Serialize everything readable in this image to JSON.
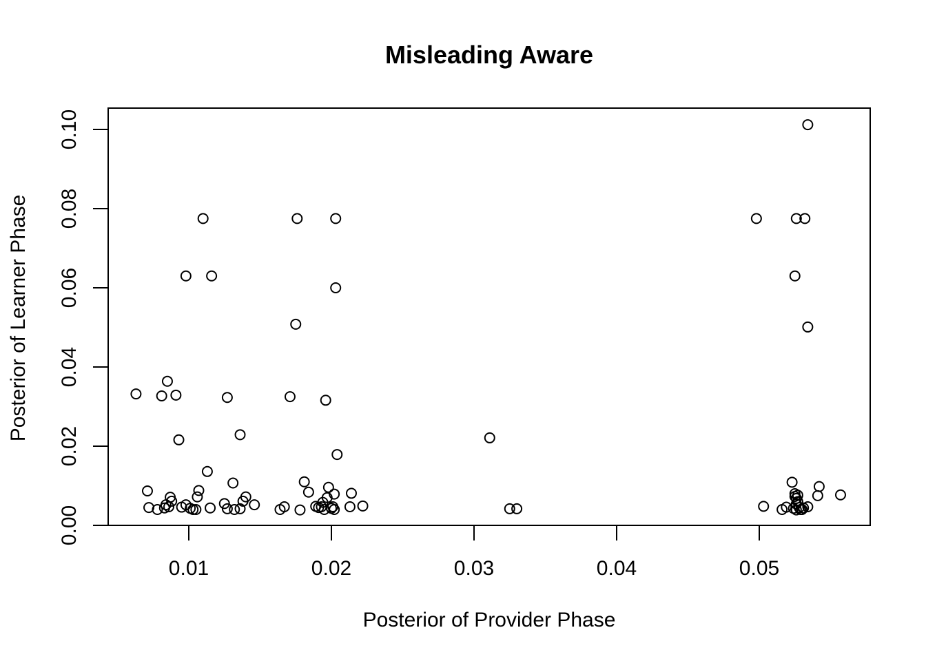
{
  "chart_data": {
    "type": "scatter",
    "title": "Misleading Aware",
    "xlabel": "Posterior of Provider Phase",
    "ylabel": "Posterior of Learner Phase",
    "xlim": [
      0.0045,
      0.058
    ],
    "ylim": [
      0.0,
      0.105
    ],
    "x_ticks": [
      0.01,
      0.02,
      0.03,
      0.04,
      0.05
    ],
    "x_tick_labels": [
      "0.01",
      "0.02",
      "0.03",
      "0.04",
      "0.05"
    ],
    "y_ticks": [
      0.0,
      0.02,
      0.04,
      0.06,
      0.08,
      0.1
    ],
    "y_tick_labels": [
      "0.00",
      "0.02",
      "0.04",
      "0.06",
      "0.08",
      "0.10"
    ],
    "grid": false,
    "legend": "none",
    "marker": "open-circle",
    "points": [
      [
        0.0063,
        0.0332
      ],
      [
        0.0081,
        0.0327
      ],
      [
        0.0085,
        0.0364
      ],
      [
        0.0091,
        0.0329
      ],
      [
        0.0093,
        0.0216
      ],
      [
        0.0071,
        0.0087
      ],
      [
        0.0072,
        0.0045
      ],
      [
        0.0078,
        0.004
      ],
      [
        0.0083,
        0.0044
      ],
      [
        0.0084,
        0.0052
      ],
      [
        0.0086,
        0.0047
      ],
      [
        0.0087,
        0.0071
      ],
      [
        0.0088,
        0.0061
      ],
      [
        0.0095,
        0.0046
      ],
      [
        0.0098,
        0.0052
      ],
      [
        0.0101,
        0.0043
      ],
      [
        0.0103,
        0.004
      ],
      [
        0.0105,
        0.004
      ],
      [
        0.0106,
        0.0072
      ],
      [
        0.0107,
        0.0088
      ],
      [
        0.0098,
        0.063
      ],
      [
        0.011,
        0.0775
      ],
      [
        0.0116,
        0.063
      ],
      [
        0.0113,
        0.0136
      ],
      [
        0.0115,
        0.0044
      ],
      [
        0.0127,
        0.0323
      ],
      [
        0.0136,
        0.0229
      ],
      [
        0.0125,
        0.0055
      ],
      [
        0.0127,
        0.0042
      ],
      [
        0.0131,
        0.0107
      ],
      [
        0.0132,
        0.004
      ],
      [
        0.0136,
        0.0042
      ],
      [
        0.0138,
        0.0061
      ],
      [
        0.014,
        0.0072
      ],
      [
        0.0146,
        0.0052
      ],
      [
        0.0164,
        0.004
      ],
      [
        0.0167,
        0.0047
      ],
      [
        0.0171,
        0.0325
      ],
      [
        0.0175,
        0.0508
      ],
      [
        0.0176,
        0.0775
      ],
      [
        0.0178,
        0.0039
      ],
      [
        0.0181,
        0.011
      ],
      [
        0.0184,
        0.0084
      ],
      [
        0.0189,
        0.0048
      ],
      [
        0.0191,
        0.0045
      ],
      [
        0.0193,
        0.0047
      ],
      [
        0.0194,
        0.0058
      ],
      [
        0.0195,
        0.004
      ],
      [
        0.0196,
        0.0316
      ],
      [
        0.0197,
        0.007
      ],
      [
        0.0198,
        0.0096
      ],
      [
        0.02,
        0.0043
      ],
      [
        0.0201,
        0.0047
      ],
      [
        0.0202,
        0.004
      ],
      [
        0.0202,
        0.0079
      ],
      [
        0.0203,
        0.0775
      ],
      [
        0.0203,
        0.06
      ],
      [
        0.0204,
        0.0179
      ],
      [
        0.0213,
        0.0047
      ],
      [
        0.0214,
        0.0081
      ],
      [
        0.0222,
        0.0049
      ],
      [
        0.0311,
        0.0221
      ],
      [
        0.0325,
        0.0042
      ],
      [
        0.033,
        0.0042
      ],
      [
        0.0498,
        0.0775
      ],
      [
        0.0503,
        0.0048
      ],
      [
        0.0516,
        0.004
      ],
      [
        0.0519,
        0.0046
      ],
      [
        0.0523,
        0.0109
      ],
      [
        0.0524,
        0.0043
      ],
      [
        0.0525,
        0.008
      ],
      [
        0.0525,
        0.0073
      ],
      [
        0.0525,
        0.063
      ],
      [
        0.0526,
        0.0775
      ],
      [
        0.0526,
        0.0068
      ],
      [
        0.0526,
        0.0054
      ],
      [
        0.0526,
        0.0039
      ],
      [
        0.0527,
        0.006
      ],
      [
        0.0527,
        0.0076
      ],
      [
        0.0528,
        0.0045
      ],
      [
        0.0529,
        0.004
      ],
      [
        0.053,
        0.004
      ],
      [
        0.0531,
        0.0044
      ],
      [
        0.0532,
        0.0775
      ],
      [
        0.0534,
        0.0047
      ],
      [
        0.0534,
        0.1012
      ],
      [
        0.0534,
        0.0501
      ],
      [
        0.0541,
        0.0075
      ],
      [
        0.0542,
        0.0098
      ],
      [
        0.0557,
        0.0077
      ]
    ]
  }
}
